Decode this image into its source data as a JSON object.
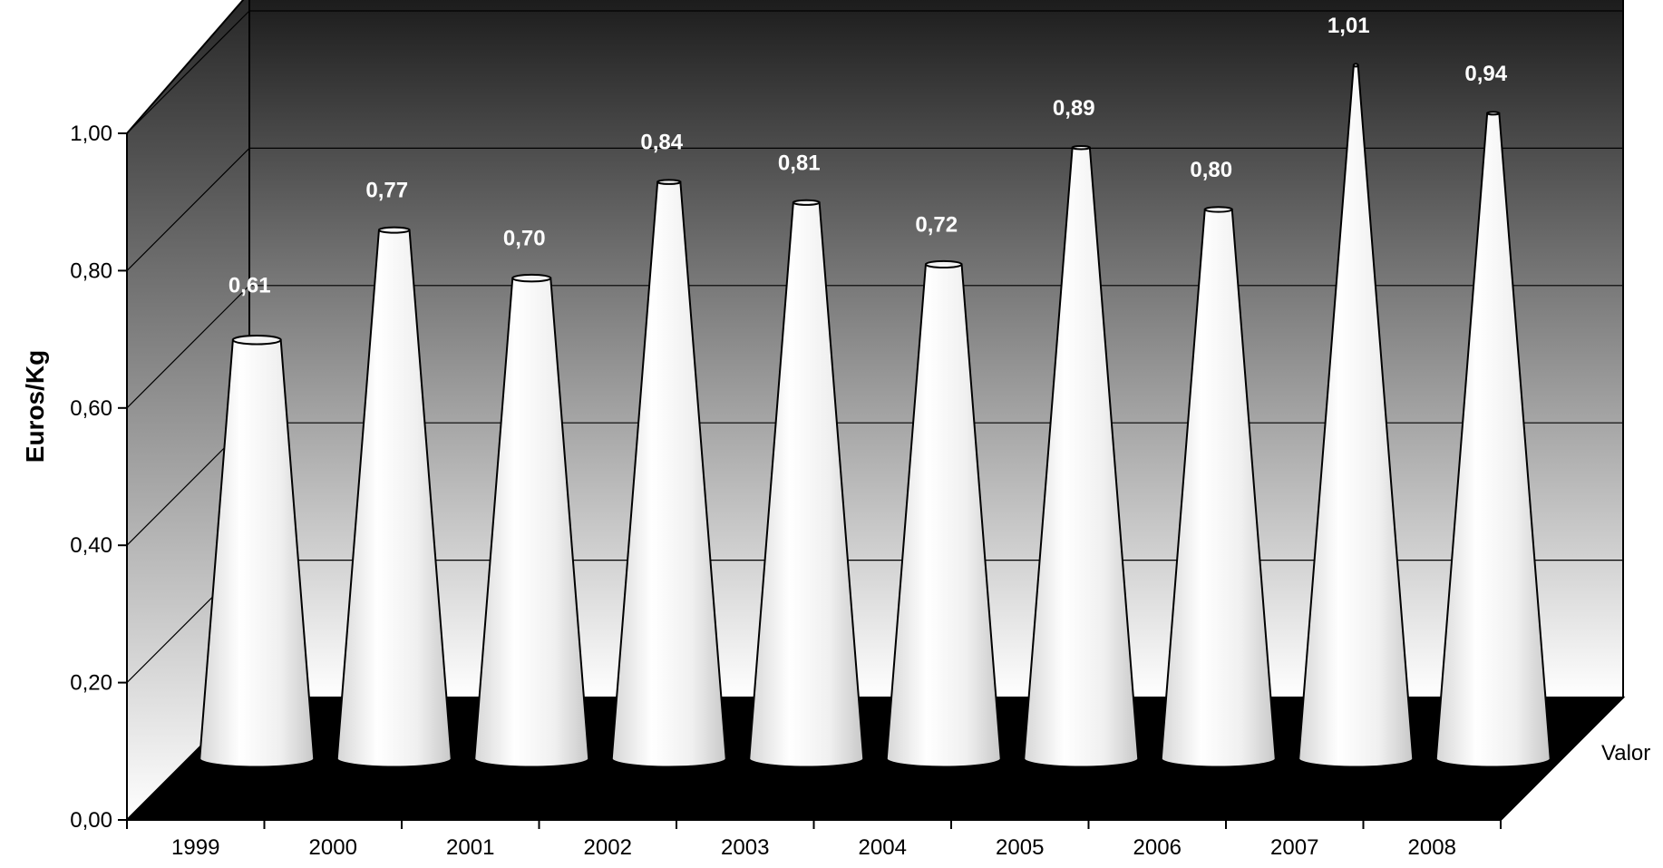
{
  "chart_data": {
    "type": "bar",
    "bar_shape": "cone",
    "style": "3d",
    "categories": [
      "1999",
      "2000",
      "2001",
      "2002",
      "2003",
      "2004",
      "2005",
      "2006",
      "2007",
      "2008"
    ],
    "series": [
      {
        "name": "Valor",
        "values": [
          0.61,
          0.77,
          0.7,
          0.84,
          0.81,
          0.72,
          0.89,
          0.8,
          1.01,
          0.94
        ]
      }
    ],
    "data_labels": [
      "0,61",
      "0,77",
      "0,70",
      "0,84",
      "0,81",
      "0,72",
      "0,89",
      "0,80",
      "1,01",
      "0,94"
    ],
    "ylabel": "Euros/Kg",
    "xlabel": "",
    "yticks": [
      "0,00",
      "0,20",
      "0,40",
      "0,60",
      "0,80",
      "1,00"
    ],
    "ylim": [
      0,
      1.0
    ],
    "grid": true,
    "colors": {
      "wall_top": "#1a1a1a",
      "wall_bottom": "#ffffff",
      "floor": "#000000",
      "cone": "#eeeeee",
      "data_label": "#ffffff"
    }
  }
}
